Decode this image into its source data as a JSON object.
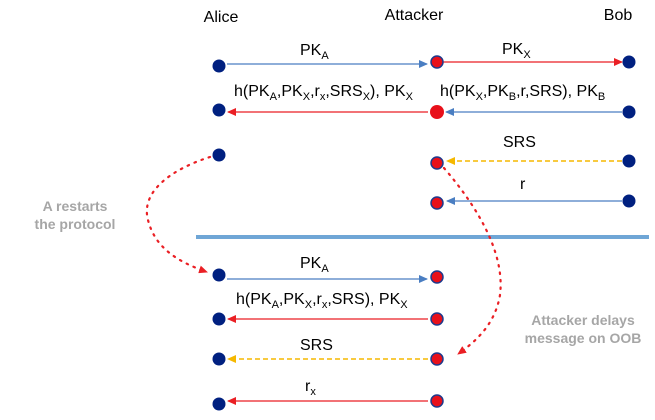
{
  "colors": {
    "node_blue": "#002080",
    "node_red": "#e8101a",
    "node_outline": "#1f3a8c",
    "arrow_blue": "#4a7ec2",
    "arrow_red": "#ea1f24",
    "arrow_yellow": "#f5b800",
    "dotted_red": "#ea1f24",
    "separator": "#6fa6d6",
    "annotation": "#a6a6a6"
  },
  "parties": {
    "alice": "Alice",
    "attacker": "Attacker",
    "bob": "Bob"
  },
  "phase1": {
    "msg1_left": "PK",
    "msg1_left_sub": "A",
    "msg1_right": "PK",
    "msg1_right_sub": "X",
    "msg2_left": "h(PK_A,PK_X,r_x,SRS_X), PK_X",
    "msg2_right": "h(PK_X,PK_B,r,SRS), PK_B",
    "msg3": "SRS",
    "msg4": "r"
  },
  "phase2": {
    "msg1": "PK",
    "msg1_sub": "A",
    "msg2": "h(PK_A,PK_X,r_x,SRS), PK_X",
    "msg3": "SRS",
    "msg4": "r",
    "msg4_sub": "x"
  },
  "annotations": {
    "restart_line1": "A restarts",
    "restart_line2": "the protocol",
    "delay_line1": "Attacker delays",
    "delay_line2": "message on OOB"
  }
}
